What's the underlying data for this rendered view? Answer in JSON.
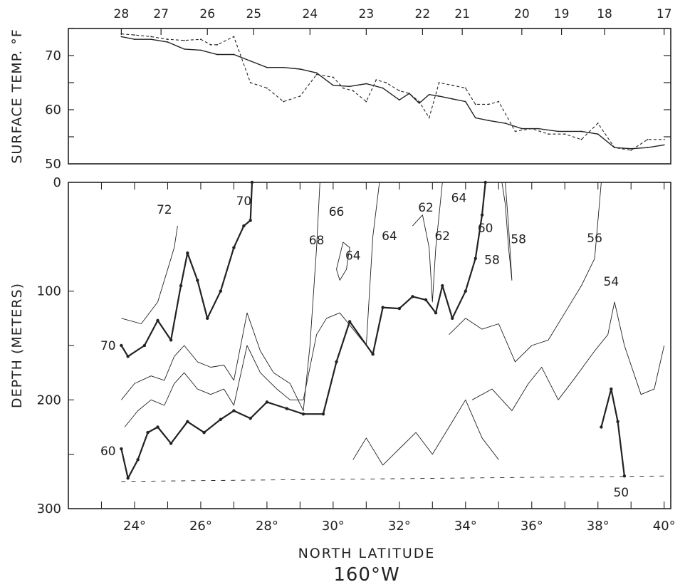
{
  "chart_data": [
    {
      "type": "line",
      "panel": "top",
      "ylabel": "SURFACE TEMP. °F",
      "ylim": [
        50,
        75
      ],
      "y_ticks": [
        "50",
        "60",
        "70"
      ],
      "x_top_ticks": [
        "28",
        "27",
        "26",
        "25",
        "24",
        "23",
        "22",
        "21",
        "20",
        "19",
        "18",
        "17"
      ],
      "x_top_tick_lat": [
        23.6,
        24.8,
        26.2,
        27.6,
        29.3,
        31.0,
        32.7,
        33.9,
        35.7,
        36.9,
        38.2,
        40.0
      ],
      "series": [
        {
          "style": "solid",
          "x": [
            23.6,
            24.0,
            24.5,
            25.0,
            25.5,
            26.0,
            26.5,
            27.0,
            27.5,
            28.0,
            28.5,
            29.0,
            29.5,
            30.0,
            30.5,
            31.0,
            31.5,
            32.0,
            32.3,
            32.6,
            32.9,
            33.2,
            33.6,
            34.0,
            34.3,
            34.7,
            35.2,
            35.7,
            36.2,
            36.8,
            37.5,
            38.0,
            38.5,
            39.0,
            39.5,
            40.0
          ],
          "y": [
            73.5,
            73.0,
            73.0,
            72.5,
            71.2,
            71.0,
            70.2,
            70.2,
            69.0,
            67.8,
            67.8,
            67.5,
            66.8,
            64.5,
            64.3,
            64.8,
            64.0,
            61.8,
            63.0,
            61.2,
            62.8,
            62.5,
            62.0,
            61.5,
            58.5,
            58.0,
            57.5,
            56.5,
            56.5,
            56.0,
            56.0,
            55.5,
            53.0,
            52.8,
            53.0,
            53.5
          ]
        },
        {
          "style": "dashed",
          "x": [
            23.6,
            24.0,
            24.5,
            25.0,
            25.5,
            26.0,
            26.3,
            26.5,
            27.0,
            27.5,
            28.0,
            28.5,
            29.0,
            29.5,
            30.0,
            30.3,
            30.6,
            31.0,
            31.3,
            31.6,
            32.0,
            32.3,
            32.6,
            32.9,
            33.2,
            33.6,
            34.0,
            34.3,
            34.7,
            35.0,
            35.5,
            36.0,
            36.5,
            37.0,
            37.5,
            38.0,
            38.5,
            39.0,
            39.5,
            40.0
          ],
          "y": [
            74.0,
            73.8,
            73.5,
            73.0,
            72.8,
            73.0,
            72.0,
            72.0,
            73.5,
            65.0,
            64.0,
            61.5,
            62.5,
            66.5,
            66.0,
            64.0,
            63.5,
            61.5,
            65.5,
            65.0,
            63.5,
            63.0,
            61.5,
            58.5,
            65.0,
            64.5,
            64.0,
            61.0,
            61.0,
            61.5,
            56.0,
            56.5,
            55.5,
            55.5,
            54.5,
            57.5,
            53.0,
            52.5,
            54.5,
            54.5
          ]
        }
      ]
    },
    {
      "type": "contour",
      "panel": "bottom",
      "ylabel": "DEPTH (METERS)",
      "xlabel": "NORTH LATITUDE",
      "subtitle": "160°W",
      "ylim": [
        300,
        0
      ],
      "xlim": [
        22,
        40.2
      ],
      "y_ticks": [
        "0",
        "100",
        "200",
        "300"
      ],
      "x_ticks": [
        "24°",
        "26°",
        "28°",
        "30°",
        "32°",
        "34°",
        "36°",
        "38°",
        "40°"
      ],
      "x_tick_values": [
        24,
        26,
        28,
        30,
        32,
        34,
        36,
        38,
        40
      ],
      "isotherm_labels": [
        "72",
        "70",
        "66",
        "68",
        "64",
        "64",
        "62",
        "64",
        "62",
        "60",
        "58",
        "58",
        "56",
        "54",
        "70",
        "60",
        "50"
      ],
      "isotherm_values": [
        72,
        70,
        66,
        68,
        64,
        64,
        62,
        64,
        62,
        60,
        58,
        58,
        56,
        54,
        70,
        60,
        50
      ],
      "isotherm_label_pos": [
        {
          "lat": 24.9,
          "depth": 25
        },
        {
          "lat": 27.3,
          "depth": 17
        },
        {
          "lat": 30.1,
          "depth": 27
        },
        {
          "lat": 29.5,
          "depth": 53
        },
        {
          "lat": 31.7,
          "depth": 49
        },
        {
          "lat": 30.6,
          "depth": 67
        },
        {
          "lat": 32.8,
          "depth": 23
        },
        {
          "lat": 33.8,
          "depth": 14
        },
        {
          "lat": 33.3,
          "depth": 49
        },
        {
          "lat": 34.6,
          "depth": 42
        },
        {
          "lat": 35.6,
          "depth": 52
        },
        {
          "lat": 34.8,
          "depth": 71
        },
        {
          "lat": 37.9,
          "depth": 51
        },
        {
          "lat": 38.4,
          "depth": 91
        },
        {
          "lat": 23.2,
          "depth": 150
        },
        {
          "lat": 23.2,
          "depth": 247
        },
        {
          "lat": 38.7,
          "depth": 285
        }
      ],
      "contours": [
        {
          "value": 70,
          "bold": true,
          "x": [
            23.6,
            23.8,
            24.3,
            24.7,
            25.1,
            25.4,
            25.6,
            25.9,
            26.2,
            26.6,
            27.0,
            27.3,
            27.5,
            27.55
          ],
          "y": [
            150,
            160,
            150,
            127,
            145,
            95,
            65,
            90,
            125,
            100,
            60,
            40,
            35,
            0
          ]
        },
        {
          "value": 60,
          "bold": true,
          "x": [
            23.6,
            23.8,
            24.1,
            24.4,
            24.7,
            25.1,
            25.6,
            26.1,
            26.6,
            27.0,
            27.5,
            28.0,
            28.6,
            29.1,
            29.7,
            30.1,
            30.5,
            31.2,
            31.5,
            32.0,
            32.4,
            32.8,
            33.1,
            33.3,
            33.6,
            34.0,
            34.3,
            34.5,
            34.6
          ],
          "y": [
            245,
            272,
            255,
            230,
            225,
            240,
            220,
            230,
            218,
            210,
            217,
            202,
            208,
            213,
            213,
            165,
            128,
            158,
            115,
            116,
            105,
            108,
            120,
            95,
            125,
            100,
            70,
            30,
            0
          ]
        },
        {
          "value": 50,
          "bold": true,
          "x": [
            38.1,
            38.4,
            38.6,
            38.8
          ],
          "y": [
            225,
            190,
            220,
            270
          ]
        },
        {
          "value": 72,
          "bold": false,
          "x": [
            23.6,
            24.2,
            24.7,
            25.0,
            25.2,
            25.3
          ],
          "y": [
            125,
            130,
            110,
            80,
            60,
            40
          ]
        },
        {
          "value": 68,
          "bold": false,
          "x": [
            23.6,
            24.0,
            24.5,
            24.9,
            25.2,
            25.5,
            25.9,
            26.3,
            26.7,
            27.0,
            27.4,
            27.8,
            28.2,
            28.7,
            29.1,
            29.3,
            29.5,
            29.6
          ],
          "y": [
            200,
            185,
            178,
            182,
            160,
            150,
            165,
            170,
            168,
            182,
            120,
            155,
            175,
            185,
            210,
            150,
            60,
            0
          ]
        },
        {
          "value": 66,
          "bold": false,
          "x": [
            23.7,
            24.1,
            24.5,
            24.9,
            25.2,
            25.5,
            25.9,
            26.3,
            26.7,
            27.0,
            27.4,
            27.8,
            28.3,
            28.7,
            29.1,
            29.5,
            29.8,
            30.2,
            30.6,
            31.0,
            31.2,
            31.4
          ],
          "y": [
            225,
            210,
            200,
            205,
            185,
            175,
            190,
            195,
            190,
            205,
            150,
            175,
            190,
            200,
            200,
            140,
            125,
            120,
            135,
            150,
            50,
            0
          ]
        },
        {
          "value": 64,
          "bold": false,
          "x": [
            30.1,
            30.3,
            30.5,
            30.4,
            30.2,
            30.1
          ],
          "y": [
            80,
            55,
            60,
            80,
            90,
            80
          ]
        },
        {
          "value": 62,
          "bold": false,
          "x": [
            32.4,
            32.7,
            32.9,
            33.0,
            33.1,
            33.3
          ],
          "y": [
            40,
            30,
            60,
            110,
            60,
            0
          ]
        },
        {
          "value": 58,
          "bold": false,
          "x": [
            35.1,
            35.2,
            35.3,
            35.4,
            35.3,
            35.2
          ],
          "y": [
            0,
            20,
            60,
            90,
            40,
            0
          ]
        },
        {
          "value": 56,
          "bold": false,
          "x": [
            33.5,
            34.0,
            34.5,
            35.0,
            35.5,
            36.0,
            36.5,
            37.0,
            37.5,
            37.9,
            38.1
          ],
          "y": [
            140,
            125,
            135,
            130,
            165,
            150,
            145,
            120,
            95,
            70,
            0
          ]
        },
        {
          "value": 54,
          "bold": false,
          "x": [
            34.2,
            34.8,
            35.4,
            35.9,
            36.3,
            36.8,
            37.3,
            37.9,
            38.3,
            38.5,
            38.8,
            39.3,
            39.7,
            40.0
          ],
          "y": [
            200,
            190,
            210,
            185,
            170,
            200,
            180,
            155,
            140,
            110,
            150,
            195,
            190,
            150
          ]
        },
        {
          "value": 52,
          "bold": false,
          "x": [
            30.6,
            31.0,
            31.5,
            32.0,
            32.5,
            33.0,
            33.5,
            34.0,
            34.5,
            35.0
          ],
          "y": [
            255,
            235,
            260,
            245,
            230,
            250,
            225,
            200,
            235,
            255
          ]
        }
      ]
    }
  ]
}
